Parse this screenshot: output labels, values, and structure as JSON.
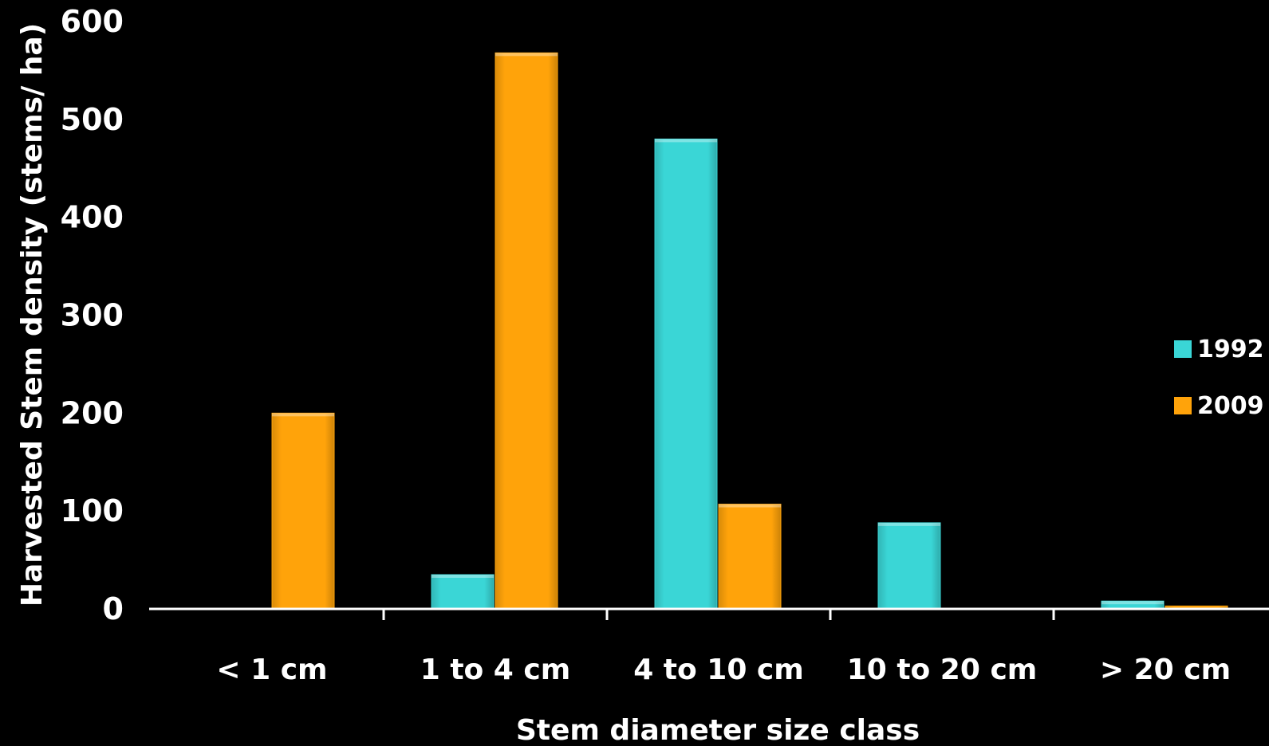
{
  "chart_data": {
    "type": "bar",
    "categories": [
      "< 1 cm",
      "1 to 4 cm",
      "4 to 10 cm",
      "10 to 20 cm",
      "> 20 cm"
    ],
    "series": [
      {
        "name": "1992",
        "values": [
          0,
          35,
          480,
          88,
          8
        ],
        "color": "#3ad6d6"
      },
      {
        "name": "2009",
        "values": [
          200,
          568,
          107,
          0,
          3
        ],
        "color": "#ffa30a"
      }
    ],
    "xlabel": "Stem diameter size class",
    "ylabel": "Harvested Stem density (stems/ ha)",
    "ylim": [
      0,
      600
    ],
    "yticks": [
      "0",
      "100",
      "200",
      "300",
      "400",
      "500",
      "600"
    ],
    "grid": false,
    "legend_position": "right"
  }
}
